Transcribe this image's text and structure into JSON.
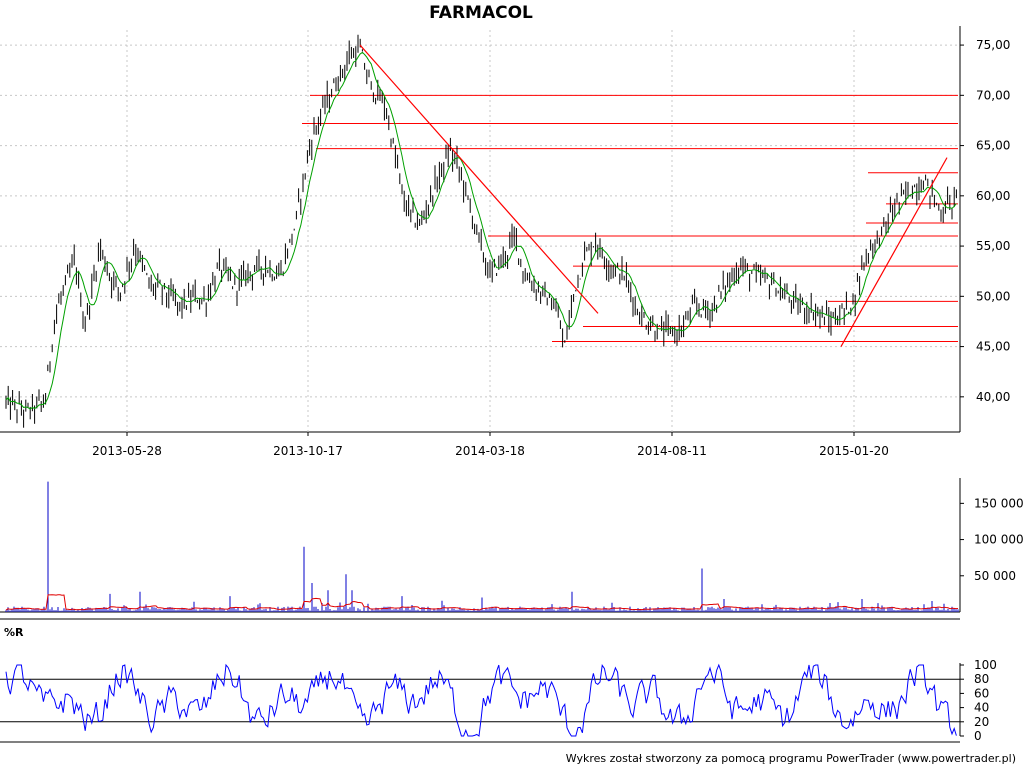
{
  "chart_data": [
    {
      "type": "candlestick",
      "title": "FARMACOL",
      "x_tick_labels": [
        "2013-05-28",
        "2013-10-17",
        "2014-03-18",
        "2014-08-11",
        "2015-01-20"
      ],
      "y_tick_labels": [
        "75,00",
        "70,00",
        "65,00",
        "60,00",
        "55,00",
        "50,00",
        "45,00",
        "40,00"
      ],
      "y_ticks": [
        75,
        70,
        65,
        60,
        55,
        50,
        45,
        40
      ],
      "ylim": [
        36.5,
        76.5
      ],
      "grid": true,
      "price_anchors": [
        [
          0,
          37.5
        ],
        [
          5,
          39.5
        ],
        [
          25,
          38.5
        ],
        [
          45,
          39.5
        ],
        [
          55,
          48
        ],
        [
          65,
          51
        ],
        [
          75,
          53.5
        ],
        [
          85,
          47
        ],
        [
          100,
          55
        ],
        [
          110,
          52
        ],
        [
          120,
          50.5
        ],
        [
          135,
          55
        ],
        [
          150,
          51
        ],
        [
          165,
          50.5
        ],
        [
          180,
          49
        ],
        [
          195,
          50
        ],
        [
          205,
          49.5
        ],
        [
          220,
          53
        ],
        [
          235,
          51
        ],
        [
          250,
          52.5
        ],
        [
          265,
          53
        ],
        [
          280,
          52
        ],
        [
          295,
          57
        ],
        [
          310,
          65
        ],
        [
          320,
          68
        ],
        [
          335,
          71
        ],
        [
          350,
          74
        ],
        [
          360,
          74.5
        ],
        [
          370,
          71
        ],
        [
          385,
          69
        ],
        [
          395,
          64
        ],
        [
          405,
          59
        ],
        [
          420,
          57
        ],
        [
          435,
          61
        ],
        [
          450,
          64.5
        ],
        [
          460,
          62.5
        ],
        [
          475,
          57
        ],
        [
          490,
          52
        ],
        [
          505,
          54
        ],
        [
          515,
          56
        ],
        [
          525,
          52
        ],
        [
          540,
          50.5
        ],
        [
          555,
          49
        ],
        [
          565,
          45
        ],
        [
          575,
          51
        ],
        [
          585,
          54
        ],
        [
          595,
          55.5
        ],
        [
          610,
          53
        ],
        [
          625,
          52
        ],
        [
          640,
          48
        ],
        [
          660,
          46.5
        ],
        [
          680,
          46.5
        ],
        [
          695,
          49
        ],
        [
          710,
          48.5
        ],
        [
          725,
          51
        ],
        [
          740,
          53
        ],
        [
          755,
          52
        ],
        [
          770,
          51.5
        ],
        [
          785,
          50
        ],
        [
          800,
          49
        ],
        [
          815,
          48.5
        ],
        [
          830,
          47.5
        ],
        [
          845,
          48.5
        ],
        [
          855,
          50
        ],
        [
          865,
          54
        ],
        [
          880,
          56
        ],
        [
          895,
          59
        ],
        [
          910,
          60.5
        ],
        [
          925,
          61.5
        ],
        [
          940,
          58.5
        ],
        [
          955,
          59.5
        ]
      ],
      "support_resistance_lines": [
        {
          "y": 70.0,
          "x_start": 310,
          "x_end": 958
        },
        {
          "y": 67.2,
          "x_start": 302,
          "x_end": 958
        },
        {
          "y": 64.7,
          "x_start": 316,
          "x_end": 958
        },
        {
          "y": 62.3,
          "x_start": 868,
          "x_end": 958
        },
        {
          "y": 59.2,
          "x_start": 886,
          "x_end": 958
        },
        {
          "y": 57.3,
          "x_start": 866,
          "x_end": 958
        },
        {
          "y": 56.0,
          "x_start": 488,
          "x_end": 958
        },
        {
          "y": 53.0,
          "x_start": 573,
          "x_end": 958
        },
        {
          "y": 49.5,
          "x_start": 828,
          "x_end": 958
        },
        {
          "y": 47.0,
          "x_start": 583,
          "x_end": 958
        },
        {
          "y": 45.5,
          "x_start": 552,
          "x_end": 958
        }
      ],
      "trend_lines": [
        {
          "from": [
            360,
            75.0
          ],
          "to": [
            598,
            48.3
          ]
        },
        {
          "from": [
            841,
            45.0
          ],
          "to": [
            947,
            63.8
          ]
        }
      ]
    },
    {
      "type": "bar",
      "y_tick_labels": [
        "150 000",
        "100 000",
        "50 000"
      ],
      "y_ticks": [
        150000,
        100000,
        50000
      ],
      "ylim": [
        0,
        185000
      ],
      "spikes": [
        [
          48,
          180000
        ],
        [
          51,
          90000
        ],
        [
          63,
          85000
        ],
        [
          73,
          50000
        ],
        [
          91,
          25000
        ],
        [
          105,
          30000
        ],
        [
          110,
          25000
        ],
        [
          140,
          28000
        ],
        [
          149,
          20000
        ],
        [
          230,
          22000
        ],
        [
          295,
          20000
        ],
        [
          304,
          90000
        ],
        [
          307,
          60000
        ],
        [
          312,
          40000
        ],
        [
          328,
          30000
        ],
        [
          346,
          52000
        ],
        [
          352,
          30000
        ],
        [
          395,
          30000
        ],
        [
          402,
          22000
        ],
        [
          482,
          20000
        ],
        [
          555,
          25000
        ],
        [
          563,
          22000
        ],
        [
          572,
          28000
        ],
        [
          619,
          85000
        ],
        [
          627,
          30000
        ],
        [
          702,
          60000
        ],
        [
          717,
          30000
        ],
        [
          724,
          18000
        ],
        [
          849,
          100000
        ],
        [
          862,
          18000
        ]
      ]
    },
    {
      "type": "line",
      "title": "%R",
      "y_tick_labels": [
        "100",
        "80",
        "60",
        "40",
        "20",
        "0"
      ],
      "y_ticks": [
        100,
        80,
        60,
        40,
        20,
        0
      ],
      "ylim": [
        0,
        100
      ],
      "reference_lines": [
        80,
        20
      ]
    }
  ],
  "footer": {
    "credit": "Wykres został stworzony za pomocą programu PowerTrader (www.powertrader.pl)"
  },
  "colors": {
    "candle": "#000000",
    "moving_average": "#00a000",
    "lines": "#ff0000",
    "volume": "#0000c8",
    "volume_average": "#e00000",
    "williams_r": "#0000ff",
    "grid": "#c8c8c8"
  }
}
